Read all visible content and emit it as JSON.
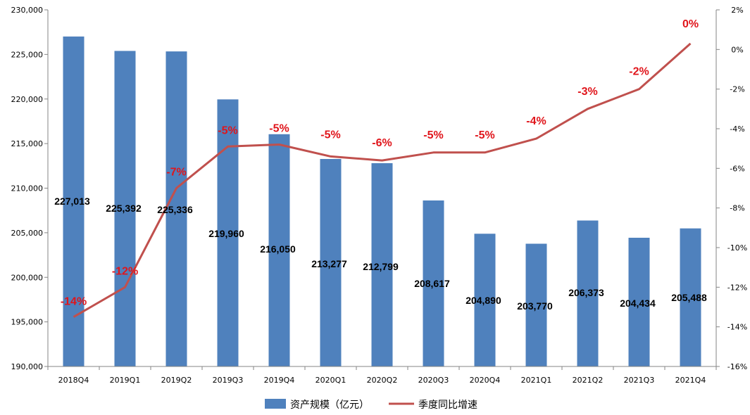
{
  "chart_data": {
    "type": "bar+line",
    "categories": [
      "2018Q4",
      "2019Q1",
      "2019Q2",
      "2019Q3",
      "2019Q4",
      "2020Q1",
      "2020Q2",
      "2020Q3",
      "2020Q4",
      "2021Q1",
      "2021Q2",
      "2021Q3",
      "2021Q4"
    ],
    "series": [
      {
        "name": "资产规模（亿元）",
        "type": "bar",
        "axis": "left",
        "color": "#4f81bd",
        "values": [
          227013,
          225392,
          225336,
          219960,
          216050,
          213277,
          212799,
          208617,
          204890,
          203770,
          206373,
          204434,
          205488
        ],
        "labels": [
          "227,013",
          "225,392",
          "225,336",
          "219,960",
          "216,050",
          "213,277",
          "212,799",
          "208,617",
          "204,890",
          "203,770",
          "206,373",
          "204,434",
          "205,488"
        ]
      },
      {
        "name": "季度同比增速",
        "type": "line",
        "axis": "right",
        "color": "#c0504d",
        "values": [
          -13.5,
          -12.0,
          -7.0,
          -4.9,
          -4.8,
          -5.4,
          -5.6,
          -5.2,
          -5.2,
          -4.5,
          -3.0,
          -2.0,
          0.3
        ],
        "labels": [
          "-14%",
          "-12%",
          "-7%",
          "-5%",
          "-5%",
          "-5%",
          "-6%",
          "-5%",
          "-5%",
          "-4%",
          "-3%",
          "-2%",
          "0%"
        ],
        "label_color": "#e0151b"
      }
    ],
    "left_axis": {
      "ylim": [
        190000,
        230000
      ],
      "ticks": [
        190000,
        195000,
        200000,
        205000,
        210000,
        215000,
        220000,
        225000,
        230000
      ],
      "tick_labels": [
        "190,000",
        "195,000",
        "200,000",
        "205,000",
        "210,000",
        "215,000",
        "220,000",
        "225,000",
        "230,000"
      ]
    },
    "right_axis": {
      "ylim": [
        -16,
        2
      ],
      "ticks": [
        -16,
        -14,
        -12,
        -10,
        -8,
        -6,
        -4,
        -2,
        0,
        2
      ],
      "tick_labels": [
        "-16%",
        "-14%",
        "-12%",
        "-10%",
        "-8%",
        "-6%",
        "-4%",
        "-2%",
        "0%",
        "2%"
      ]
    },
    "grid": false,
    "legend_position": "bottom-center"
  }
}
